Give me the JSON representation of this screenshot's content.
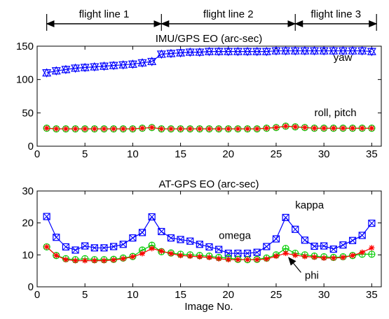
{
  "flight_lines": [
    {
      "label": "flight line 1",
      "from": 1,
      "to": 13
    },
    {
      "label": "flight line 2",
      "from": 13,
      "to": 27
    },
    {
      "label": "flight line 3",
      "from": 27,
      "to": 35.5
    }
  ],
  "xlabel": "Image No.",
  "chart_data": [
    {
      "type": "line",
      "title": "IMU/GPS EO (arc-sec)",
      "xlim": [
        0,
        36
      ],
      "ylim": [
        0,
        150
      ],
      "xticks": [
        0,
        5,
        10,
        15,
        20,
        25,
        30,
        35
      ],
      "yticks": [
        0,
        50,
        100,
        150
      ],
      "x": [
        1,
        2,
        3,
        4,
        5,
        6,
        7,
        8,
        9,
        10,
        11,
        12,
        13,
        14,
        15,
        16,
        17,
        18,
        19,
        20,
        21,
        22,
        23,
        24,
        25,
        26,
        27,
        28,
        29,
        30,
        31,
        32,
        33,
        34,
        35
      ],
      "series": [
        {
          "name": "yaw",
          "marker": "triangle",
          "color": "#0000ff",
          "values": [
            110,
            113,
            115,
            117,
            118,
            119,
            120,
            121,
            122,
            123,
            125,
            127,
            138,
            139,
            140,
            141,
            141,
            142,
            142,
            142,
            142,
            142,
            142,
            142,
            143,
            143,
            143,
            143,
            143,
            143,
            143,
            143,
            143,
            143,
            142
          ]
        },
        {
          "name": "roll",
          "marker": "circle",
          "color": "#00cc00",
          "values": [
            27,
            26,
            26,
            26,
            26,
            26,
            26,
            26,
            26,
            26,
            27,
            28,
            26,
            26,
            26,
            26,
            26,
            26,
            26,
            26,
            26,
            26,
            26,
            27,
            28,
            30,
            29,
            28,
            27,
            27,
            27,
            27,
            27,
            27,
            27
          ]
        },
        {
          "name": "pitch",
          "marker": "asterisk",
          "color": "#ff0000",
          "values": [
            27,
            26,
            26,
            26,
            26,
            26,
            26,
            26,
            26,
            26,
            27,
            28,
            26,
            26,
            26,
            26,
            26,
            26,
            26,
            26,
            26,
            26,
            26,
            27,
            28,
            30,
            29,
            28,
            27,
            27,
            27,
            27,
            27,
            27,
            27
          ]
        }
      ],
      "annotations": [
        {
          "text": "yaw",
          "x": 31,
          "y": 128
        },
        {
          "text": "roll, pitch",
          "x": 29,
          "y": 45
        }
      ]
    },
    {
      "type": "line",
      "title": "AT-GPS EO (arc-sec)",
      "xlim": [
        0,
        36
      ],
      "ylim": [
        0,
        30
      ],
      "xticks": [
        0,
        5,
        10,
        15,
        20,
        25,
        30,
        35
      ],
      "yticks": [
        0,
        10,
        20,
        30
      ],
      "x": [
        1,
        2,
        3,
        4,
        5,
        6,
        7,
        8,
        9,
        10,
        11,
        12,
        13,
        14,
        15,
        16,
        17,
        18,
        19,
        20,
        21,
        22,
        23,
        24,
        25,
        26,
        27,
        28,
        29,
        30,
        31,
        32,
        33,
        34,
        35
      ],
      "series": [
        {
          "name": "kappa",
          "marker": "square",
          "color": "#0000ff",
          "values": [
            22,
            15.5,
            12.5,
            11.5,
            12.8,
            12.2,
            12.2,
            12.6,
            13.3,
            15.3,
            17,
            21.9,
            17.3,
            15.3,
            14.8,
            14.3,
            13.3,
            12.5,
            11.7,
            10.5,
            10.5,
            10.5,
            10.8,
            12.6,
            15,
            21.7,
            18,
            14.6,
            12.7,
            12.8,
            11.8,
            13.1,
            14.5,
            16.1,
            19.9
          ]
        },
        {
          "name": "omega",
          "marker": "circle",
          "color": "#00cc00",
          "values": [
            12.5,
            9.8,
            8.8,
            8.5,
            8.8,
            8.5,
            8.5,
            8.6,
            9,
            9.5,
            11.5,
            13,
            11,
            10.6,
            10.2,
            10,
            9.8,
            9.6,
            9.2,
            9,
            8.6,
            8.5,
            8.6,
            9,
            10,
            12,
            10.5,
            10,
            9.6,
            9.4,
            9.2,
            9.4,
            9.8,
            10.2,
            10.2
          ]
        },
        {
          "name": "phi",
          "marker": "asterisk",
          "color": "#ff0000",
          "values": [
            12.5,
            9.8,
            8.5,
            8.2,
            8.2,
            8.2,
            8.2,
            8.4,
            8.8,
            9.4,
            10.4,
            12,
            11.2,
            10.4,
            9.8,
            9.6,
            9.4,
            9.2,
            8.8,
            8.5,
            8.5,
            8.5,
            8.5,
            8.7,
            9.6,
            10.5,
            9.9,
            9.5,
            9.3,
            9,
            9,
            9.2,
            9.8,
            10.8,
            12.2
          ]
        }
      ],
      "annotations": [
        {
          "text": "kappa",
          "x": 27,
          "y": 24.5
        },
        {
          "text": "omega",
          "x": 19,
          "y": 15
        },
        {
          "text": "phi",
          "x": 28,
          "y": 2.5
        }
      ]
    }
  ]
}
